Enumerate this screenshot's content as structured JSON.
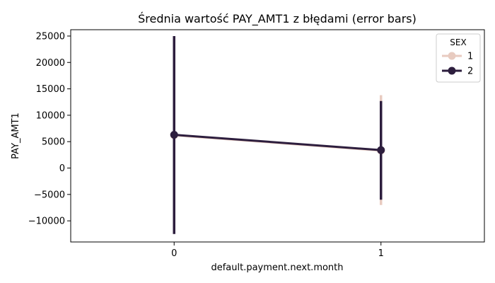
{
  "chart_data": {
    "type": "line",
    "title": "Średnia wartość PAY_AMT1 z błędami (error bars)",
    "xlabel": "default.payment.next.month",
    "ylabel": "PAY_AMT1",
    "categories": [
      "0",
      "1"
    ],
    "ylim": [
      -14000,
      26200
    ],
    "yticks": [
      -10000,
      -5000,
      0,
      5000,
      10000,
      15000,
      20000,
      25000
    ],
    "ytick_labels": [
      "−10000",
      "−5000",
      "0",
      "5000",
      "10000",
      "15000",
      "20000",
      "25000"
    ],
    "grid": false,
    "legend": {
      "title": "SEX",
      "position": "top-right"
    },
    "series": [
      {
        "name": "1",
        "color": "#e8cbc0",
        "values": [
          6200,
          3300
        ],
        "error_low": [
          -12000,
          -7000
        ],
        "error_high": [
          24500,
          13800
        ]
      },
      {
        "name": "2",
        "color": "#2d1e3e",
        "values": [
          6300,
          3400
        ],
        "error_low": [
          -12500,
          -6000
        ],
        "error_high": [
          25000,
          12700
        ]
      }
    ]
  }
}
